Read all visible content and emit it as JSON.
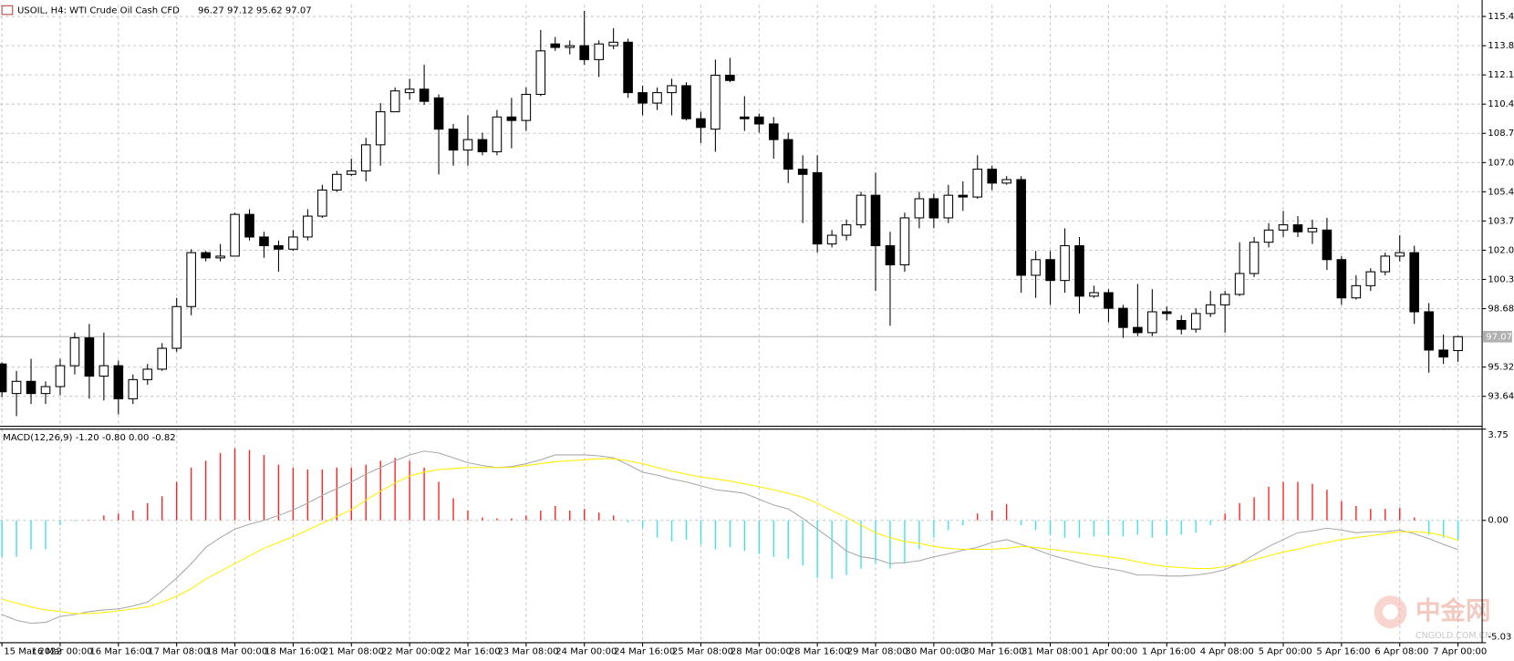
{
  "chart_data": [
    {
      "type": "candlestick",
      "title": "USOIL, H4: WTI Crude Oil Cash CFD",
      "subtitle": "96.27 97.12 95.62 97.07",
      "categories": [
        "15 Mar 2022",
        null,
        null,
        null,
        "16 Mar 00:00",
        null,
        null,
        null,
        "16 Mar 16:00",
        null,
        null,
        null,
        "17 Mar 08:00",
        null,
        null,
        null,
        "18 Mar 00:00",
        null,
        null,
        null,
        "18 Mar 16:00",
        null,
        null,
        null,
        "21 Mar 08:00",
        null,
        null,
        null,
        "22 Mar 00:00",
        null,
        null,
        null,
        "22 Mar 16:00",
        null,
        null,
        null,
        "23 Mar 08:00",
        null,
        null,
        null,
        "24 Mar 00:00",
        null,
        null,
        null,
        "24 Mar 16:00",
        null,
        null,
        null,
        "25 Mar 08:00",
        null,
        null,
        null,
        "28 Mar 00:00",
        null,
        null,
        null,
        "28 Mar 16:00",
        null,
        null,
        null,
        "29 Mar 08:00",
        null,
        null,
        null,
        "30 Mar 00:00",
        null,
        null,
        null,
        "30 Mar 16:00",
        null,
        null,
        null,
        "31 Mar 08:00",
        null,
        null,
        null,
        "1 Apr 00:00",
        null,
        null,
        null,
        "1 Apr 16:00",
        null,
        null,
        null,
        "4 Apr 08:00",
        null,
        null,
        null,
        "5 Apr 00:00",
        null,
        null,
        null,
        "5 Apr 16:00",
        null,
        null,
        null,
        "6 Apr 08:00",
        null,
        null,
        null,
        "7 Apr 00:00"
      ],
      "open": [
        95.5,
        93.8,
        94.5,
        93.8,
        94.2,
        95.4,
        97.0,
        94.8,
        95.4,
        93.5,
        94.6,
        95.2,
        96.4,
        98.8,
        101.9,
        101.6,
        101.7,
        104.1,
        102.8,
        102.3,
        102.1,
        102.8,
        104.0,
        105.5,
        106.4,
        106.6,
        108.1,
        110.0,
        111.1,
        111.3,
        110.8,
        109.0,
        107.8,
        108.4,
        107.7,
        109.7,
        109.5,
        111.0,
        113.9,
        113.7,
        113.8,
        113.0,
        113.8,
        114.0,
        111.1,
        110.5,
        111.1,
        111.5,
        109.6,
        109.0,
        112.1,
        109.7,
        109.7,
        109.3,
        108.4,
        106.7,
        106.5,
        102.4,
        102.9,
        103.5,
        105.2,
        102.3,
        101.2,
        103.9,
        105.0,
        103.9,
        105.2,
        105.1,
        106.7,
        105.9,
        106.1,
        100.6,
        101.5,
        100.3,
        102.3,
        99.4,
        99.6,
        98.7,
        97.6,
        97.3,
        98.5,
        98.0,
        97.5,
        98.4,
        98.9,
        99.5,
        100.7,
        102.5,
        103.2,
        103.5,
        103.1,
        103.2,
        101.5,
        99.3,
        100.0,
        100.8,
        101.7,
        101.9,
        98.5,
        96.3,
        96.27
      ],
      "high": [
        95.6,
        95.1,
        95.8,
        94.5,
        95.8,
        97.3,
        97.8,
        97.3,
        95.7,
        94.9,
        95.5,
        96.7,
        99.3,
        102.1,
        102.0,
        102.4,
        104.2,
        104.4,
        103.1,
        102.6,
        103.2,
        104.4,
        105.8,
        106.6,
        107.3,
        108.5,
        110.5,
        111.4,
        111.9,
        112.7,
        111.0,
        109.3,
        109.8,
        108.8,
        110.1,
        110.8,
        111.4,
        114.7,
        114.3,
        114.1,
        115.8,
        114.1,
        114.8,
        114.2,
        111.5,
        111.4,
        111.9,
        111.7,
        110.0,
        113.0,
        113.1,
        110.9,
        109.9,
        109.7,
        108.8,
        107.5,
        107.5,
        103.2,
        103.8,
        105.4,
        106.5,
        103.1,
        104.2,
        105.4,
        105.3,
        105.8,
        106.0,
        107.5,
        106.9,
        106.3,
        106.3,
        102.0,
        102.0,
        103.3,
        102.8,
        100.0,
        99.8,
        98.9,
        100.1,
        99.8,
        98.8,
        98.3,
        98.7,
        99.7,
        99.7,
        102.5,
        102.8,
        103.6,
        104.3,
        104.0,
        103.8,
        103.9,
        101.7,
        100.6,
        101.0,
        101.9,
        102.9,
        102.3,
        99.0,
        97.2,
        97.12
      ],
      "low": [
        93.6,
        92.5,
        93.2,
        93.2,
        93.7,
        94.9,
        93.5,
        93.4,
        92.6,
        93.2,
        94.3,
        95.1,
        96.2,
        98.3,
        101.4,
        101.4,
        101.7,
        102.6,
        101.6,
        100.8,
        102.0,
        102.6,
        103.9,
        105.4,
        106.3,
        106.0,
        106.9,
        110.0,
        110.7,
        110.4,
        106.4,
        106.9,
        106.9,
        107.5,
        107.5,
        107.9,
        108.9,
        110.9,
        113.5,
        113.3,
        112.7,
        112.0,
        113.6,
        110.8,
        109.8,
        110.1,
        109.8,
        109.5,
        108.2,
        107.7,
        111.7,
        108.9,
        108.8,
        107.3,
        105.9,
        103.6,
        101.9,
        102.2,
        102.6,
        103.3,
        99.7,
        97.7,
        100.8,
        103.3,
        103.3,
        103.6,
        104.3,
        105.0,
        105.5,
        105.8,
        99.6,
        99.3,
        98.9,
        99.6,
        98.4,
        99.3,
        97.9,
        97.0,
        97.1,
        97.1,
        98.0,
        97.2,
        97.3,
        98.2,
        97.3,
        99.4,
        100.5,
        102.2,
        102.8,
        102.8,
        102.4,
        100.9,
        98.9,
        99.2,
        99.7,
        100.6,
        101.4,
        97.8,
        95.0,
        95.5,
        95.62
      ],
      "close": [
        93.9,
        94.5,
        93.8,
        94.2,
        95.4,
        97.0,
        94.8,
        95.4,
        93.5,
        94.6,
        95.2,
        96.4,
        98.8,
        101.9,
        101.6,
        101.7,
        104.1,
        102.8,
        102.3,
        102.1,
        102.8,
        104.0,
        105.5,
        106.4,
        106.6,
        108.1,
        110.0,
        111.2,
        111.3,
        110.6,
        109.0,
        107.8,
        108.4,
        107.7,
        109.7,
        109.5,
        111.0,
        113.5,
        113.7,
        113.8,
        113.0,
        113.9,
        114.0,
        111.1,
        110.5,
        111.1,
        111.5,
        109.6,
        109.1,
        112.1,
        111.8,
        109.6,
        109.3,
        108.4,
        106.7,
        106.4,
        102.4,
        102.9,
        103.5,
        105.2,
        102.3,
        101.2,
        103.9,
        105.0,
        103.9,
        105.2,
        105.1,
        106.7,
        105.9,
        106.1,
        100.6,
        101.5,
        100.3,
        102.3,
        99.4,
        99.6,
        98.7,
        97.6,
        97.3,
        98.5,
        98.4,
        97.5,
        98.4,
        98.9,
        99.5,
        100.7,
        102.5,
        103.2,
        103.5,
        103.1,
        103.3,
        101.5,
        99.3,
        100.0,
        100.8,
        101.7,
        101.9,
        98.5,
        96.3,
        95.9,
        97.07
      ],
      "up_color": "#ffffff",
      "down_color": "#000000",
      "outline_color": "#000000",
      "ylim": [
        91.92,
        116.15
      ],
      "yticks": [
        115.48,
        {
          "value": 113.8,
          "label": "113.80"
        },
        112.12,
        110.44,
        108.76,
        107.08,
        {
          "value": 105.4,
          "label": "105.40"
        },
        103.72,
        102.04,
        100.36,
        98.68,
        95.32,
        93.64
      ],
      "grid": true,
      "last_price": 97.07
    },
    {
      "type": "macd",
      "title": "MACD(12,26,9) -1.20 -0.80 0.00 -0.82",
      "histogram": {
        "values": [
          -1.5,
          -1.5,
          -1.19,
          -1.19,
          -0.2,
          -0.04,
          0.02,
          0.2,
          0.28,
          0.4,
          0.71,
          0.99,
          1.58,
          2.17,
          2.45,
          2.77,
          2.96,
          2.89,
          2.69,
          2.29,
          2.17,
          2.09,
          2.09,
          2.17,
          2.17,
          2.29,
          2.45,
          2.57,
          2.45,
          2.17,
          1.58,
          0.91,
          0.4,
          0.12,
          0.08,
          0.08,
          0.2,
          0.4,
          0.59,
          0.4,
          0.47,
          0.32,
          0.2,
          -0.08,
          -0.32,
          -0.71,
          -0.87,
          -0.79,
          -0.99,
          -1.19,
          -1.11,
          -1.26,
          -1.38,
          -1.5,
          -1.58,
          -1.86,
          -2.37,
          -2.41,
          -2.25,
          -1.98,
          -1.78,
          -1.98,
          -1.78,
          -1.19,
          -0.71,
          -0.4,
          -0.2,
          0.28,
          0.4,
          0.67,
          -0.2,
          -0.4,
          -0.59,
          -0.71,
          -0.71,
          -0.67,
          -0.63,
          -0.67,
          -0.59,
          -0.71,
          -0.63,
          -0.59,
          -0.51,
          -0.2,
          0.28,
          0.71,
          0.95,
          1.38,
          1.58,
          1.58,
          1.5,
          1.26,
          0.79,
          0.59,
          0.47,
          0.47,
          0.51,
          0.12,
          -0.59,
          -0.71,
          -0.8
        ],
        "up_color": "#ff2020",
        "down_color": "#40e0e8"
      },
      "macd_line": {
        "color": "#a8a8a8",
        "values": [
          -3.87,
          -4.11,
          -4.23,
          -4.19,
          -3.95,
          -3.87,
          -3.75,
          -3.68,
          -3.64,
          -3.52,
          -3.36,
          -2.89,
          -2.37,
          -1.78,
          -1.11,
          -0.71,
          -0.36,
          -0.16,
          0.0,
          0.2,
          0.43,
          0.71,
          1.03,
          1.3,
          1.58,
          1.9,
          2.17,
          2.45,
          2.69,
          2.85,
          2.77,
          2.57,
          2.37,
          2.25,
          2.17,
          2.21,
          2.33,
          2.49,
          2.69,
          2.69,
          2.69,
          2.65,
          2.57,
          2.29,
          1.98,
          1.86,
          1.7,
          1.58,
          1.42,
          1.26,
          1.19,
          1.11,
          0.87,
          0.63,
          0.47,
          0.08,
          -0.36,
          -0.79,
          -1.26,
          -1.5,
          -1.58,
          -1.78,
          -1.74,
          -1.66,
          -1.5,
          -1.38,
          -1.23,
          -1.11,
          -0.91,
          -0.79,
          -0.99,
          -1.19,
          -1.42,
          -1.58,
          -1.74,
          -1.9,
          -1.98,
          -2.09,
          -2.25,
          -2.25,
          -2.29,
          -2.29,
          -2.25,
          -2.17,
          -2.02,
          -1.78,
          -1.42,
          -1.07,
          -0.79,
          -0.51,
          -0.43,
          -0.32,
          -0.4,
          -0.51,
          -0.47,
          -0.47,
          -0.4,
          -0.55,
          -0.75,
          -0.99,
          -1.2
        ]
      },
      "signal_line": {
        "color": "#ffee00",
        "values": [
          -3.24,
          -3.4,
          -3.56,
          -3.68,
          -3.75,
          -3.83,
          -3.83,
          -3.79,
          -3.72,
          -3.64,
          -3.56,
          -3.36,
          -3.12,
          -2.81,
          -2.41,
          -2.09,
          -1.78,
          -1.46,
          -1.15,
          -0.91,
          -0.67,
          -0.4,
          -0.12,
          0.16,
          0.43,
          0.83,
          1.19,
          1.54,
          1.82,
          1.98,
          2.09,
          2.13,
          2.17,
          2.17,
          2.17,
          2.17,
          2.25,
          2.33,
          2.41,
          2.45,
          2.49,
          2.53,
          2.53,
          2.45,
          2.33,
          2.17,
          2.02,
          1.9,
          1.78,
          1.7,
          1.62,
          1.5,
          1.38,
          1.26,
          1.11,
          0.95,
          0.71,
          0.4,
          0.12,
          -0.2,
          -0.51,
          -0.71,
          -0.87,
          -0.95,
          -1.07,
          -1.15,
          -1.19,
          -1.19,
          -1.19,
          -1.15,
          -1.07,
          -1.11,
          -1.19,
          -1.26,
          -1.34,
          -1.42,
          -1.5,
          -1.58,
          -1.7,
          -1.82,
          -1.9,
          -1.94,
          -1.98,
          -1.98,
          -1.9,
          -1.78,
          -1.62,
          -1.46,
          -1.3,
          -1.19,
          -1.03,
          -0.91,
          -0.79,
          -0.71,
          -0.63,
          -0.55,
          -0.47,
          -0.47,
          -0.51,
          -0.63,
          -0.82
        ]
      },
      "ylim": [
        -5.03,
        3.75
      ],
      "yticks": [
        3.75,
        {
          "value": 0,
          "label": "0.00"
        },
        -5.03
      ],
      "grid": true
    }
  ],
  "watermark": {
    "title": "中金网",
    "subtitle": "CNGOLD.COM.CN"
  }
}
